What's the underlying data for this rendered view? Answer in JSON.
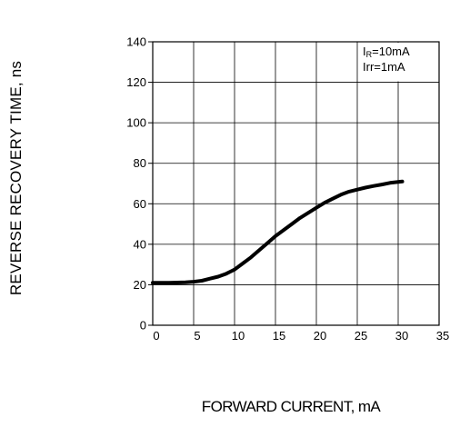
{
  "chart_data": {
    "type": "line",
    "xlabel": "FORWARD CURRENT, mA",
    "ylabel": "REVERSE RECOVERY TIME, ns",
    "xlim": [
      0,
      35
    ],
    "ylim": [
      0,
      140
    ],
    "x_ticks": [
      "0",
      "5",
      "10",
      "15",
      "20",
      "25",
      "30",
      "35"
    ],
    "y_ticks": [
      "0",
      "20",
      "40",
      "60",
      "80",
      "100",
      "120",
      "140"
    ],
    "grid": true,
    "annotations": [
      {
        "main": "I",
        "sub": "R",
        "rest": "=10mA"
      },
      {
        "main": "Irr",
        "sub": "",
        "rest": "=1mA"
      }
    ],
    "series": [
      {
        "x": [
          0,
          2,
          4,
          5,
          6,
          7,
          8,
          9,
          10,
          11,
          12,
          13,
          14,
          15,
          16,
          17,
          18,
          19,
          20,
          21,
          22,
          23,
          24,
          25,
          26,
          27,
          28,
          29,
          30.5
        ],
        "y": [
          21,
          21,
          21.2,
          21.5,
          22,
          23,
          24,
          25.5,
          27.5,
          30.5,
          33.5,
          37,
          40.5,
          44,
          47,
          50,
          53,
          55.5,
          58,
          60.5,
          62.5,
          64.5,
          66,
          67,
          68,
          68.8,
          69.5,
          70.3,
          71
        ]
      }
    ]
  },
  "colors": {
    "axis": "#000000",
    "grid": "#000000",
    "line": "#000000",
    "background": "#ffffff"
  }
}
